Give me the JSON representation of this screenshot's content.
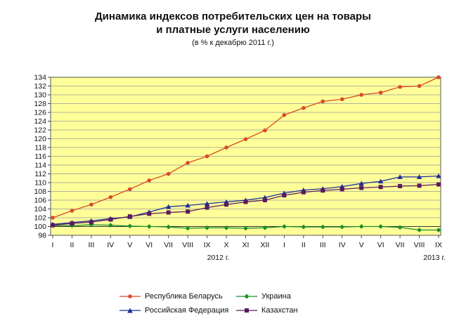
{
  "chart_data": {
    "type": "line",
    "title_line1": "Динамика индексов потребительских цен на товары",
    "title_line2": "и платные услуги населению",
    "subtitle": "(в % к декабрю 2011 г.)",
    "categories": [
      "I",
      "II",
      "III",
      "IV",
      "V",
      "VI",
      "VII",
      "VIII",
      "IX",
      "X",
      "XI",
      "XII",
      "I",
      "II",
      "III",
      "IV",
      "V",
      "VI",
      "VII",
      "VIII",
      "IX"
    ],
    "year_labels": [
      "2012 г.",
      "2013 г."
    ],
    "ylim": [
      98,
      134
    ],
    "yticks": [
      98,
      100,
      102,
      104,
      106,
      108,
      110,
      112,
      114,
      116,
      118,
      120,
      122,
      124,
      126,
      128,
      130,
      132,
      134
    ],
    "grid": true,
    "legend_position": "bottom",
    "plot_background": "#ffff99",
    "series": [
      {
        "name": "Республика Беларусь",
        "color": "#d94a2b",
        "marker": "circle",
        "values": [
          102.0,
          103.6,
          105.0,
          106.7,
          108.5,
          110.5,
          112.0,
          114.5,
          116.0,
          118.0,
          119.9,
          121.9,
          125.4,
          127.0,
          128.5,
          129.0,
          130.0,
          130.5,
          131.8,
          132.0,
          134.0
        ]
      },
      {
        "name": "Украина",
        "color": "#1a8f2a",
        "marker": "diamond",
        "values": [
          100.2,
          100.2,
          100.4,
          100.3,
          100.1,
          100.0,
          99.9,
          99.6,
          99.7,
          99.7,
          99.6,
          99.7,
          100.0,
          99.9,
          99.9,
          99.9,
          100.0,
          100.0,
          99.8,
          99.2,
          99.2
        ]
      },
      {
        "name": "Российская Федерация",
        "color": "#1c2e9a",
        "marker": "triangle",
        "values": [
          100.5,
          100.9,
          101.3,
          101.8,
          102.2,
          103.3,
          104.5,
          104.8,
          105.2,
          105.6,
          106.0,
          106.6,
          107.6,
          108.3,
          108.6,
          109.1,
          109.8,
          110.3,
          111.3,
          111.3,
          111.5
        ]
      },
      {
        "name": "Казахстан",
        "color": "#5a1a5e",
        "marker": "square",
        "values": [
          100.3,
          100.7,
          101.0,
          101.6,
          102.3,
          102.9,
          103.2,
          103.4,
          104.3,
          105.0,
          105.6,
          106.0,
          107.1,
          107.8,
          108.2,
          108.5,
          108.8,
          109.0,
          109.2,
          109.3,
          109.6
        ]
      }
    ]
  }
}
